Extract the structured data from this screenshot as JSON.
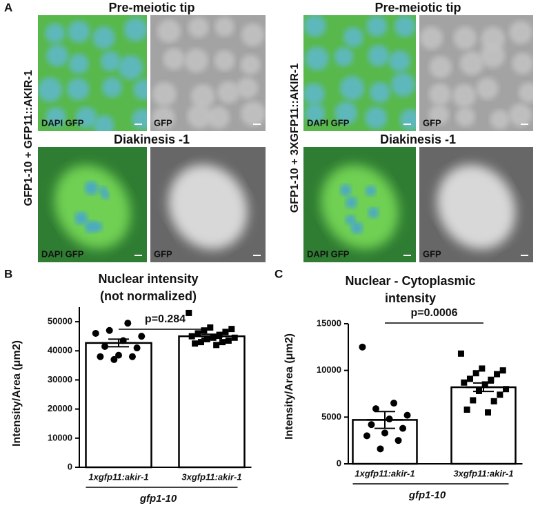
{
  "panel_a": {
    "label": "A",
    "groups": [
      {
        "side_label": "GFP1-10 + GFP11::AKIR-1",
        "rows": [
          {
            "title": "Pre-meiotic tip",
            "images": [
              {
                "label": "DAPI GFP"
              },
              {
                "label": "GFP"
              }
            ]
          },
          {
            "title": "Diakinesis -1",
            "images": [
              {
                "label": "DAPI GFP"
              },
              {
                "label": "GFP"
              }
            ]
          }
        ]
      },
      {
        "side_label": "GFP1-10 + 3XGFP11::AKIR-1",
        "rows": [
          {
            "title": "Pre-meiotic tip",
            "images": [
              {
                "label": "DAPI GFP"
              },
              {
                "label": "GFP"
              }
            ]
          },
          {
            "title": "Diakinesis -1",
            "images": [
              {
                "label": "DAPI GFP"
              },
              {
                "label": "GFP"
              }
            ]
          }
        ]
      }
    ]
  },
  "chart_data": [
    {
      "type": "bar",
      "panel_label": "B",
      "title": "Nuclear intensity",
      "subtitle": "(not normalized)",
      "y_label": "Intensity/Area (μm2)",
      "categories": [
        "1xgfp11:akir-1",
        "3xgfp11:akir-1"
      ],
      "group_label": "gfp1-10",
      "values": [
        42700,
        45000
      ],
      "errors": [
        1300,
        700
      ],
      "points": [
        [
          46000,
          49500,
          47000,
          45000,
          43500,
          41500,
          41000,
          38500,
          38000,
          38000,
          37000
        ],
        [
          53000,
          48000,
          47500,
          47000,
          46500,
          46000,
          45500,
          45000,
          44500,
          44500,
          44000,
          43500,
          43000,
          43000,
          42500,
          42000
        ]
      ],
      "annotation": "p=0.284",
      "ylim": [
        0,
        55000
      ],
      "yticks": [
        0,
        10000,
        20000,
        30000,
        40000,
        50000
      ]
    },
    {
      "type": "bar",
      "panel_label": "C",
      "title": "Nuclear - Cytoplasmic",
      "subtitle": "intensity",
      "y_label": "Intensity/Area (μm2)",
      "categories": [
        "1xgfp11:akir-1",
        "3xgfp11:akir-1"
      ],
      "group_label": "gfp1-10",
      "values": [
        4700,
        8200
      ],
      "errors": [
        900,
        450
      ],
      "points": [
        [
          12500,
          6500,
          5900,
          5200,
          4800,
          4200,
          3800,
          3300,
          3000,
          2500,
          1600
        ],
        [
          11800,
          10200,
          10000,
          9700,
          9600,
          9100,
          9000,
          8700,
          8500,
          8000,
          7800,
          7400,
          6800,
          6700,
          5800,
          5500
        ]
      ],
      "annotation": "p=0.0006",
      "ylim": [
        0,
        15000
      ],
      "yticks": [
        0,
        5000,
        10000,
        15000
      ]
    }
  ]
}
